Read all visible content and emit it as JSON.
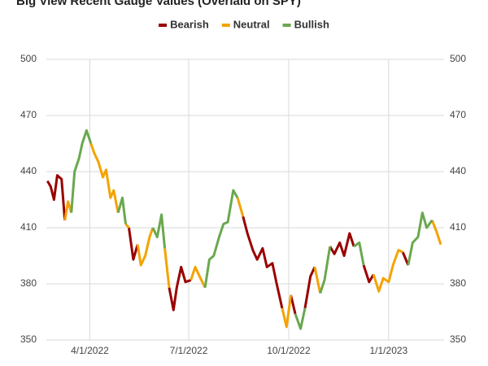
{
  "chart_data": {
    "type": "line",
    "title": "Big View Recent Gauge Values (Overlaid on SPY)",
    "x": [
      "2/21/2022",
      "2/24/2022",
      "2/27/2022",
      "3/2/2022",
      "3/6/2022",
      "3/9/2022",
      "3/12/2022",
      "3/15/2022",
      "3/18/2022",
      "3/22/2022",
      "3/25/2022",
      "3/29/2022",
      "4/2/2022",
      "4/5/2022",
      "4/9/2022",
      "4/13/2022",
      "4/16/2022",
      "4/20/2022",
      "4/23/2022",
      "4/27/2022",
      "5/1/2022",
      "5/4/2022",
      "5/7/2022",
      "5/11/2022",
      "5/15/2022",
      "5/18/2022",
      "5/22/2022",
      "5/26/2022",
      "5/29/2022",
      "6/2/2022",
      "6/6/2022",
      "6/9/2022",
      "6/13/2022",
      "6/17/2022",
      "6/20/2022",
      "6/24/2022",
      "6/28/2022",
      "7/3/2022",
      "7/7/2022",
      "7/11/2022",
      "7/16/2022",
      "7/20/2022",
      "7/24/2022",
      "7/29/2022",
      "8/2/2022",
      "8/6/2022",
      "8/11/2022",
      "8/15/2022",
      "8/20/2022",
      "8/24/2022",
      "8/29/2022",
      "9/2/2022",
      "9/7/2022",
      "9/11/2022",
      "9/16/2022",
      "9/20/2022",
      "9/25/2022",
      "9/29/2022",
      "10/3/2022",
      "10/7/2022",
      "10/12/2022",
      "10/16/2022",
      "10/21/2022",
      "10/25/2022",
      "10/30/2022",
      "11/3/2022",
      "11/8/2022",
      "11/12/2022",
      "11/17/2022",
      "11/21/2022",
      "11/26/2022",
      "11/30/2022",
      "12/5/2022",
      "12/9/2022",
      "12/14/2022",
      "12/18/2022",
      "12/23/2022",
      "12/27/2022",
      "1/1/2023",
      "1/5/2023",
      "1/10/2023",
      "1/14/2023",
      "1/19/2023",
      "1/23/2023",
      "1/28/2023",
      "2/1/2023",
      "2/5/2023",
      "2/10/2023",
      "2/14/2023",
      "2/18/2023"
    ],
    "series": [
      {
        "name": "Bearish",
        "color": "#990000",
        "values": [
          435,
          432,
          425,
          438,
          436,
          414,
          null,
          null,
          null,
          null,
          null,
          null,
          null,
          null,
          null,
          null,
          null,
          null,
          null,
          null,
          null,
          null,
          410,
          393,
          401,
          null,
          null,
          null,
          null,
          null,
          null,
          null,
          378,
          366,
          378,
          389,
          381,
          382,
          null,
          null,
          null,
          null,
          null,
          null,
          null,
          null,
          null,
          null,
          416,
          407,
          398,
          393,
          399,
          389,
          391,
          380,
          367,
          null,
          374,
          364,
          null,
          367,
          384,
          389,
          null,
          null,
          400,
          396,
          402,
          395,
          407,
          400,
          null,
          390,
          381,
          385,
          null,
          null,
          null,
          null,
          null,
          397,
          390,
          null,
          null,
          null,
          null,
          null,
          null,
          null
        ]
      },
      {
        "name": "Neutral",
        "color": "#f4a300",
        "values": [
          null,
          null,
          null,
          null,
          null,
          414,
          424,
          418,
          null,
          null,
          null,
          null,
          455,
          450,
          445,
          437,
          441,
          426,
          430,
          418,
          null,
          412,
          410,
          null,
          401,
          390,
          395,
          405,
          410,
          null,
          null,
          399,
          378,
          null,
          null,
          null,
          null,
          382,
          389,
          384,
          378,
          null,
          null,
          null,
          null,
          null,
          null,
          426,
          416,
          null,
          null,
          null,
          null,
          null,
          null,
          null,
          367,
          357,
          374,
          null,
          null,
          null,
          null,
          389,
          375,
          null,
          null,
          null,
          null,
          null,
          null,
          null,
          null,
          null,
          null,
          385,
          376,
          383,
          381,
          390,
          398,
          397,
          null,
          null,
          null,
          null,
          null,
          414,
          408,
          401
        ]
      },
      {
        "name": "Bullish",
        "color": "#6aa84f",
        "values": [
          null,
          null,
          null,
          null,
          null,
          null,
          null,
          418,
          440,
          447,
          455,
          462,
          455,
          null,
          null,
          null,
          null,
          null,
          null,
          418,
          426,
          412,
          null,
          null,
          null,
          null,
          null,
          null,
          410,
          405,
          417,
          399,
          null,
          null,
          null,
          null,
          null,
          null,
          null,
          null,
          378,
          393,
          395,
          405,
          412,
          413,
          430,
          426,
          null,
          null,
          null,
          null,
          null,
          null,
          null,
          null,
          null,
          null,
          null,
          364,
          356,
          367,
          null,
          null,
          375,
          382,
          400,
          null,
          null,
          null,
          null,
          400,
          402,
          390,
          null,
          null,
          null,
          null,
          null,
          null,
          null,
          null,
          390,
          402,
          405,
          418,
          410,
          414,
          null,
          null
        ]
      }
    ],
    "xlim": [
      "2/20/2022",
      "2/21/2023"
    ],
    "xticks": [
      "4/1/2022",
      "7/1/2022",
      "10/1/2022",
      "1/1/2023"
    ],
    "ylim": [
      350,
      500
    ],
    "yticks": [
      350,
      380,
      410,
      440,
      470,
      500
    ],
    "y2lim": [
      350,
      500
    ],
    "y2ticks": [
      350,
      380,
      410,
      440,
      470,
      500
    ],
    "grid": true,
    "legend": "top"
  }
}
